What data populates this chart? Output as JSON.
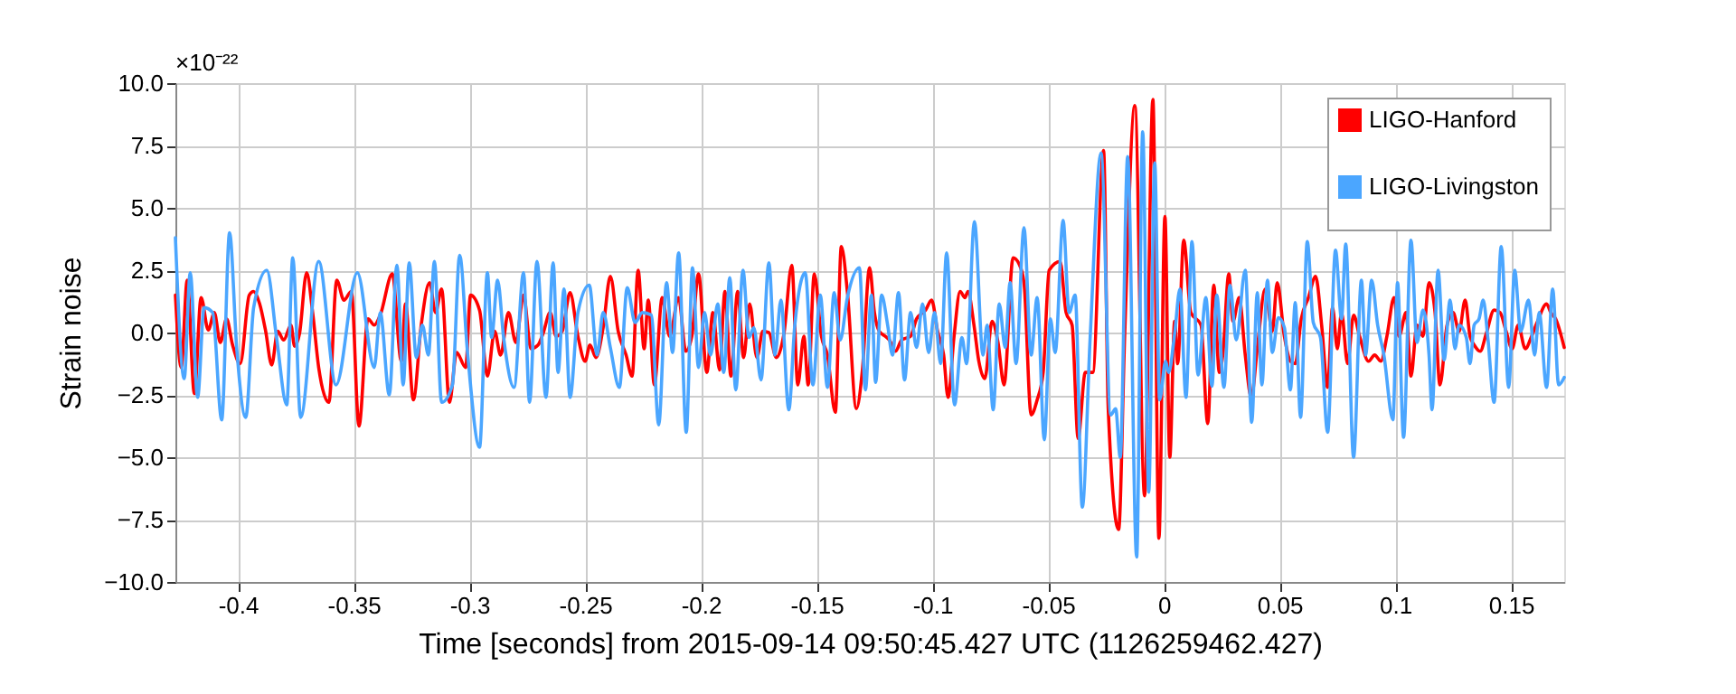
{
  "chart_data": {
    "type": "line",
    "xlabel": "Time [seconds] from 2015-09-14 09:50:45.427 UTC (1126259462.427)",
    "ylabel": "Strain noise",
    "annotations": [
      "×10⁻²²"
    ],
    "xlim": [
      -0.427,
      0.173
    ],
    "xticks": [
      -0.4,
      -0.35,
      -0.3,
      -0.25,
      -0.2,
      -0.15,
      -0.1,
      -0.05,
      0,
      0.05,
      0.1,
      0.15
    ],
    "ylim": [
      -10,
      10
    ],
    "yticks": [
      {
        "value": -10,
        "label": "−10.0"
      },
      {
        "value": -7.5,
        "label": "−7.5"
      },
      {
        "value": -5,
        "label": "−5.0"
      },
      {
        "value": -2.5,
        "label": "−2.5"
      },
      {
        "value": 0,
        "label": "0.0"
      },
      {
        "value": 2.5,
        "label": "2.5"
      },
      {
        "value": 5,
        "label": "5.0"
      },
      {
        "value": 7.5,
        "label": "7.5"
      },
      {
        "value": 10,
        "label": "10.0"
      }
    ],
    "grid": true,
    "legend": "top right",
    "series": [
      {
        "name": "LIGO-Hanford",
        "color": "#ff0000",
        "x": [
          -0.427,
          -0.4245,
          -0.4219,
          -0.4188,
          -0.4159,
          -0.4128,
          -0.4102,
          -0.4076,
          -0.4049,
          -0.4023,
          -0.399,
          -0.3951,
          -0.3932,
          -0.3906,
          -0.388,
          -0.3854,
          -0.3828,
          -0.3802,
          -0.3771,
          -0.3755,
          -0.3734,
          -0.3703,
          -0.3677,
          -0.3651,
          -0.3607,
          -0.3573,
          -0.3542,
          -0.351,
          -0.3477,
          -0.3438,
          -0.3411,
          -0.3385,
          -0.3333,
          -0.3294,
          -0.3276,
          -0.3242,
          -0.3208,
          -0.3172,
          -0.3146,
          -0.312,
          -0.3086,
          -0.3055,
          -0.3016,
          -0.2995,
          -0.2956,
          -0.2922,
          -0.2891,
          -0.2865,
          -0.2831,
          -0.2799,
          -0.2766,
          -0.2734,
          -0.2703,
          -0.2682,
          -0.2651,
          -0.2625,
          -0.2599,
          -0.2565,
          -0.2531,
          -0.25,
          -0.2479,
          -0.2453,
          -0.2422,
          -0.2391,
          -0.2357,
          -0.2323,
          -0.2297,
          -0.2271,
          -0.2245,
          -0.2227,
          -0.2201,
          -0.2167,
          -0.2135,
          -0.2096,
          -0.2065,
          -0.2039,
          -0.201,
          -0.1974,
          -0.1948,
          -0.1919,
          -0.1896,
          -0.187,
          -0.1841,
          -0.1815,
          -0.1789,
          -0.1758,
          -0.1732,
          -0.1706,
          -0.1674,
          -0.1641,
          -0.1607,
          -0.1581,
          -0.1555,
          -0.1536,
          -0.151,
          -0.1479,
          -0.1453,
          -0.1419,
          -0.1393,
          -0.1367,
          -0.1328,
          -0.1302,
          -0.1271,
          -0.125,
          -0.1229,
          -0.1203,
          -0.1185,
          -0.1159,
          -0.1133,
          -0.1094,
          -0.1068,
          -0.1029,
          -0.1003,
          -0.0977,
          -0.0951,
          -0.0932,
          -0.0906,
          -0.088,
          -0.0859,
          -0.0846,
          -0.082,
          -0.0799,
          -0.0773,
          -0.0742,
          -0.0716,
          -0.069,
          -0.0651,
          -0.0625,
          -0.0604,
          -0.0573,
          -0.0547,
          -0.0521,
          -0.0495,
          -0.0448,
          -0.0422,
          -0.0396,
          -0.037,
          -0.0339,
          -0.0307,
          -0.026,
          -0.024,
          -0.0195,
          -0.0169,
          -0.0125,
          -0.0083,
          -0.0047,
          -0.0021,
          0.0005,
          0.0026,
          0.0047,
          0.006,
          0.0086,
          0.0117,
          0.0161,
          0.019,
          0.0216,
          0.024,
          0.0255,
          0.0281,
          0.0299,
          0.0326,
          0.0352,
          0.0378,
          0.0404,
          0.0438,
          0.0469,
          0.049,
          0.0521,
          0.0547,
          0.0568,
          0.0594,
          0.0625,
          0.0656,
          0.0682,
          0.0708,
          0.0729,
          0.075,
          0.0768,
          0.0794,
          0.082,
          0.0846,
          0.0885,
          0.0911,
          0.0938,
          0.0964,
          0.0995,
          0.1016,
          0.1047,
          0.1068,
          0.1094,
          0.112,
          0.1146,
          0.1172,
          0.1193,
          0.1224,
          0.125,
          0.1276,
          0.1302,
          0.1323,
          0.1341,
          0.1367,
          0.1393,
          0.1427,
          0.1453,
          0.1479,
          0.1505,
          0.1531,
          0.1562,
          0.1589,
          0.1615,
          0.1654,
          0.1672,
          0.1693,
          0.173
        ],
        "values": [
          1.5,
          -1.4,
          2.1,
          -2.45,
          1.4,
          0.1,
          0.8,
          -0.4,
          0.55,
          -0.5,
          -1.25,
          1.5,
          1.65,
          1.15,
          0.05,
          -1.3,
          0.05,
          -0.3,
          0.3,
          -0.55,
          -0.05,
          2.4,
          0.8,
          -1.4,
          -2.8,
          2.1,
          1.3,
          1.65,
          -3.75,
          0.55,
          0.3,
          0.7,
          2.35,
          -1.15,
          1.15,
          -2.7,
          0.3,
          2.0,
          0.8,
          1.75,
          -2.8,
          -0.8,
          -1.4,
          1.5,
          0.9,
          -1.75,
          0.05,
          -0.9,
          0.8,
          -0.4,
          1.5,
          -0.65,
          -0.5,
          -0.05,
          0.8,
          -0.15,
          0.05,
          1.6,
          -0.15,
          -1.15,
          -0.5,
          -1.0,
          0.2,
          2.25,
          0.05,
          -0.9,
          -1.75,
          2.5,
          -0.65,
          1.3,
          -2.1,
          1.4,
          -0.15,
          1.4,
          -0.75,
          -0.15,
          2.35,
          -1.6,
          0.8,
          -1.5,
          1.65,
          -1.75,
          1.65,
          -1.0,
          1.15,
          -1.0,
          0.05,
          0.0,
          -1.0,
          -0.05,
          2.7,
          -2.1,
          -0.15,
          -2.1,
          2.35,
          -0.15,
          -0.9,
          -3.2,
          3.45,
          1.65,
          -3.05,
          -1.5,
          2.6,
          0.8,
          0.05,
          -0.15,
          -0.3,
          -0.75,
          -0.3,
          -0.15,
          0.55,
          0.9,
          1.3,
          0.05,
          -0.9,
          -2.6,
          -0.15,
          1.65,
          1.4,
          1.65,
          0.3,
          -1.15,
          -1.85,
          0.45,
          -0.4,
          -2.1,
          3.0,
          2.75,
          2.0,
          -3.3,
          -2.7,
          -1.6,
          2.5,
          2.85,
          0.8,
          0.3,
          -4.25,
          -1.6,
          -1.6,
          7.3,
          -3.05,
          -7.9,
          -0.15,
          9.1,
          -6.55,
          9.35,
          -8.25,
          4.65,
          -5.0,
          0.45,
          -1.25,
          3.7,
          0.8,
          0.3,
          -3.65,
          1.9,
          -1.6,
          -0.9,
          2.35,
          0.45,
          1.4,
          -0.9,
          -2.6,
          -0.65,
          1.75,
          0.05,
          2.0,
          -0.15,
          -1.15,
          -1.25,
          0.55,
          1.4,
          2.25,
          0.3,
          -2.2,
          1.0,
          -0.65,
          0.8,
          -1.25,
          0.7,
          -0.15,
          -1.15,
          -0.9,
          -1.15,
          -0.15,
          1.4,
          -0.15,
          0.8,
          -1.75,
          0.3,
          -0.15,
          2.0,
          0.8,
          -2.1,
          0.3,
          0.8,
          0.05,
          1.3,
          -0.15,
          -0.5,
          -0.75,
          -0.05,
          0.9,
          0.8,
          0.05,
          -0.65,
          0.3,
          -0.65,
          -0.15,
          0.45,
          1.15,
          0.8,
          0.55,
          -0.6
        ]
      },
      {
        "name": "LIGO-Livingston",
        "color": "#4ba6ff",
        "x": [
          -0.427,
          -0.4232,
          -0.4206,
          -0.4174,
          -0.4146,
          -0.4109,
          -0.407,
          -0.4036,
          -0.4005,
          -0.3966,
          -0.3932,
          -0.3875,
          -0.3833,
          -0.3789,
          -0.3763,
          -0.3729,
          -0.3651,
          -0.3576,
          -0.3484,
          -0.3411,
          -0.3385,
          -0.3346,
          -0.3313,
          -0.3286,
          -0.326,
          -0.3229,
          -0.3203,
          -0.3177,
          -0.3151,
          -0.312,
          -0.3073,
          -0.3042,
          -0.3008,
          -0.2956,
          -0.2922,
          -0.2904,
          -0.2878,
          -0.2852,
          -0.2807,
          -0.2766,
          -0.274,
          -0.2708,
          -0.2669,
          -0.2638,
          -0.2617,
          -0.2591,
          -0.2565,
          -0.2531,
          -0.2482,
          -0.2448,
          -0.2422,
          -0.2391,
          -0.2352,
          -0.2318,
          -0.2284,
          -0.2253,
          -0.2214,
          -0.2182,
          -0.2148,
          -0.2122,
          -0.2096,
          -0.2063,
          -0.2036,
          -0.201,
          -0.1984,
          -0.1958,
          -0.1927,
          -0.1901,
          -0.1875,
          -0.1849,
          -0.1818,
          -0.1792,
          -0.1771,
          -0.174,
          -0.1706,
          -0.168,
          -0.1654,
          -0.162,
          -0.1594,
          -0.1549,
          -0.1516,
          -0.1484,
          -0.1453,
          -0.1424,
          -0.1398,
          -0.1367,
          -0.1315,
          -0.1289,
          -0.1263,
          -0.1245,
          -0.1219,
          -0.1193,
          -0.1172,
          -0.1146,
          -0.112,
          -0.1094,
          -0.1068,
          -0.1042,
          -0.1016,
          -0.099,
          -0.0964,
          -0.0938,
          -0.0904,
          -0.0872,
          -0.0852,
          -0.0818,
          -0.0781,
          -0.0763,
          -0.0737,
          -0.0711,
          -0.0685,
          -0.0664,
          -0.0638,
          -0.0604,
          -0.0573,
          -0.0547,
          -0.0516,
          -0.049,
          -0.0469,
          -0.0435,
          -0.0409,
          -0.0383,
          -0.0352,
          -0.0318,
          -0.0271,
          -0.0229,
          -0.0208,
          -0.0188,
          -0.0156,
          -0.0117,
          -0.0091,
          -0.0065,
          -0.0039,
          -0.0018,
          0.0008,
          0.0021,
          0.0047,
          0.007,
          0.0096,
          0.0122,
          0.0148,
          0.0182,
          0.0208,
          0.0229,
          0.026,
          0.0286,
          0.0313,
          0.0352,
          0.038,
          0.0404,
          0.0424,
          0.0448,
          0.0469,
          0.0495,
          0.0521,
          0.0547,
          0.0568,
          0.0591,
          0.062,
          0.0646,
          0.0677,
          0.0708,
          0.0742,
          0.0768,
          0.0786,
          0.082,
          0.0854,
          0.0872,
          0.0898,
          0.0924,
          0.0951,
          0.099,
          0.101,
          0.1036,
          0.1068,
          0.1094,
          0.112,
          0.1146,
          0.1159,
          0.1185,
          0.1211,
          0.1237,
          0.1258,
          0.1276,
          0.1307,
          0.1323,
          0.1341,
          0.1362,
          0.138,
          0.1401,
          0.1427,
          0.1458,
          0.149,
          0.1516,
          0.1542,
          0.1576,
          0.1602,
          0.1622,
          0.1654,
          0.168,
          0.1706,
          0.173
        ],
        "values": [
          3.8,
          -1.85,
          2.4,
          -2.6,
          1.0,
          0.8,
          -3.5,
          4.0,
          -0.65,
          -3.4,
          1.0,
          2.5,
          -0.2,
          -2.9,
          3.0,
          -3.4,
          2.85,
          -2.1,
          2.4,
          -1.4,
          0.8,
          -2.5,
          2.7,
          -2.1,
          2.8,
          -1.0,
          0.3,
          -0.9,
          2.85,
          -2.8,
          -2.1,
          3.1,
          -0.8,
          -4.6,
          2.4,
          -0.2,
          2.1,
          -0.2,
          -2.2,
          2.4,
          -2.8,
          2.85,
          -2.6,
          2.8,
          -1.6,
          1.75,
          -2.6,
          0.8,
          1.9,
          -0.9,
          0.8,
          -0.6,
          -2.2,
          1.8,
          0.4,
          0.8,
          0.7,
          -3.7,
          2.0,
          -0.8,
          3.2,
          -4.0,
          2.6,
          -1.4,
          0.8,
          -0.9,
          1.15,
          -1.6,
          2.2,
          -2.3,
          2.5,
          -0.2,
          0.2,
          -1.9,
          2.8,
          -0.9,
          1.3,
          -3.1,
          0.3,
          2.4,
          -2.1,
          1.5,
          -2.2,
          1.6,
          -0.3,
          1.4,
          2.6,
          -2.3,
          1.5,
          -2.0,
          1.5,
          0.3,
          -0.9,
          1.6,
          -1.9,
          0.8,
          -0.6,
          1.15,
          -0.8,
          0.8,
          -1.25,
          3.2,
          -2.9,
          -0.2,
          -1.25,
          4.45,
          -0.9,
          0.3,
          -3.1,
          1.15,
          -0.6,
          2.0,
          -1.25,
          4.2,
          -0.9,
          1.4,
          -4.3,
          0.55,
          -0.8,
          4.5,
          0.8,
          1.5,
          -7.0,
          -0.2,
          7.2,
          -3.3,
          -3.05,
          -5.0,
          7.05,
          -9.0,
          8.05,
          -6.4,
          6.8,
          -2.7,
          -1.15,
          -1.6,
          -0.05,
          1.75,
          -2.6,
          3.65,
          -1.7,
          1.4,
          -2.15,
          1.5,
          -2.2,
          1.9,
          -0.3,
          2.5,
          -3.6,
          1.6,
          -2.1,
          2.1,
          -0.8,
          0.6,
          0.2,
          -2.3,
          1.2,
          -3.4,
          3.65,
          0.4,
          -0.2,
          -4.0,
          3.3,
          0.55,
          3.55,
          -5.0,
          2.1,
          -0.9,
          2.1,
          0.3,
          -0.9,
          -3.5,
          2.0,
          -4.2,
          3.7,
          -0.4,
          0.9,
          -0.9,
          -3.1,
          2.5,
          -1.1,
          1.3,
          -0.65,
          0.3,
          -0.2,
          -1.25,
          0.3,
          0.55,
          1.3,
          -0.3,
          -2.8,
          3.45,
          -2.2,
          2.5,
          0.05,
          1.3,
          -0.9,
          0.8,
          -2.2,
          1.75,
          -2.1,
          -1.8
        ]
      }
    ]
  }
}
